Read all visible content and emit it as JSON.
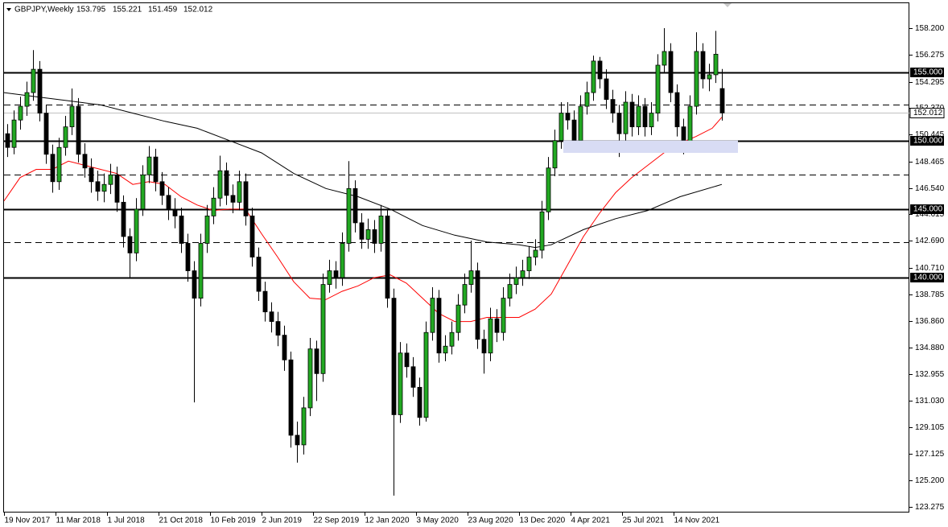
{
  "chart_data": {
    "type": "candlestick",
    "title": "GBPJPY,Weekly",
    "up_color": "#22a822",
    "down_color": "#000000",
    "x": [
      1,
      3,
      5,
      7,
      9,
      11,
      13,
      15,
      17,
      19,
      21,
      23,
      25,
      27,
      29,
      31,
      33,
      35,
      37,
      39,
      41,
      43,
      45,
      47,
      49,
      51,
      53,
      55,
      57,
      59,
      61,
      63,
      65,
      67,
      69,
      71,
      73,
      75,
      77,
      79,
      81,
      83,
      85,
      87,
      89,
      91,
      93,
      95,
      97,
      99,
      101,
      103,
      105,
      107,
      109,
      111,
      113,
      115,
      117,
      119,
      121,
      123,
      125,
      127,
      129,
      131,
      133,
      135,
      137,
      139,
      141,
      143,
      145,
      147,
      149,
      151,
      153,
      155,
      157,
      159,
      161,
      163,
      165,
      167,
      169,
      171,
      173,
      175,
      177,
      179,
      181,
      183,
      185,
      187,
      189,
      191,
      193,
      195,
      197,
      199,
      201,
      203,
      205,
      207,
      209,
      211,
      213,
      215,
      217,
      219,
      221,
      223
    ],
    "open": [
      150.5,
      149.5,
      151.5,
      152.5,
      153.5,
      155.2,
      152.0,
      149.0,
      147.0,
      149.5,
      151.0,
      152.5,
      149.0,
      148.0,
      147.0,
      146.3,
      146.8,
      147.5,
      145.5,
      143.0,
      141.8,
      145.0,
      147.5,
      148.8,
      147.0,
      146.0,
      145.0,
      144.5,
      142.5,
      140.5,
      138.5,
      142.5,
      144.5,
      145.8,
      147.8,
      146.0,
      145.5,
      147.0,
      144.5,
      141.5,
      139.0,
      137.5,
      136.8,
      135.8,
      134.0,
      128.5,
      127.8,
      130.5,
      134.8,
      133.0,
      139.5,
      140.5,
      140.0,
      142.5,
      146.5,
      144.0,
      142.8,
      143.5,
      142.5,
      144.5,
      138.5,
      130.0,
      134.5,
      133.5,
      132.0,
      129.8,
      136.0,
      138.5,
      134.5,
      135.0,
      136.0,
      138.0,
      139.5,
      140.5,
      135.5,
      134.5,
      137.0,
      136.0,
      138.5,
      139.5,
      140.0,
      140.5,
      141.5,
      142.0,
      144.8,
      148.0,
      150.0,
      152.0,
      151.5,
      150.0,
      152.5,
      153.5,
      155.8,
      154.5,
      153.0,
      152.0,
      150.5,
      152.8,
      151.0,
      152.5,
      151.0,
      152.0,
      155.5,
      156.5,
      153.5,
      151.0,
      149.8,
      152.5,
      156.5,
      154.5,
      154.8,
      153.795
    ],
    "high": [
      151.2,
      152.2,
      153.2,
      154.3,
      156.6,
      155.8,
      152.6,
      149.7,
      150.2,
      151.8,
      153.8,
      153.1,
      149.8,
      148.7,
      147.8,
      147.6,
      148.3,
      148.1,
      146.0,
      143.6,
      145.8,
      148.2,
      149.6,
      149.4,
      147.7,
      146.6,
      145.8,
      145.1,
      143.2,
      141.2,
      143.2,
      145.3,
      146.6,
      148.9,
      148.4,
      146.8,
      147.8,
      147.6,
      145.1,
      142.2,
      139.7,
      138.2,
      137.5,
      136.5,
      134.6,
      129.5,
      131.3,
      135.6,
      135.4,
      140.3,
      141.3,
      141.2,
      143.3,
      148.5,
      147.1,
      144.7,
      144.3,
      144.2,
      145.3,
      145.0,
      139.2,
      135.3,
      135.2,
      134.2,
      132.7,
      136.8,
      139.3,
      139.1,
      135.8,
      136.8,
      138.8,
      140.3,
      142.7,
      141.1,
      136.2,
      137.8,
      137.7,
      139.3,
      140.3,
      140.8,
      141.3,
      142.3,
      142.8,
      145.6,
      148.8,
      150.8,
      152.8,
      152.8,
      152.2,
      153.3,
      154.3,
      156.2,
      156.1,
      155.2,
      153.7,
      152.6,
      153.6,
      153.4,
      153.3,
      153.1,
      152.8,
      156.3,
      158.2,
      157.1,
      154.1,
      151.6,
      153.3,
      157.9,
      157.1,
      155.6,
      158.0,
      155.221
    ],
    "low": [
      148.8,
      149.0,
      150.8,
      151.8,
      152.9,
      151.4,
      148.3,
      146.2,
      146.4,
      148.9,
      150.4,
      148.4,
      147.3,
      146.2,
      145.6,
      145.5,
      146.1,
      144.8,
      142.2,
      140.0,
      141.2,
      144.5,
      146.9,
      146.3,
      145.3,
      144.2,
      143.6,
      141.8,
      139.7,
      130.9,
      137.9,
      141.8,
      143.9,
      145.2,
      145.3,
      144.7,
      144.9,
      143.8,
      140.8,
      138.3,
      136.8,
      136.0,
      135.0,
      133.2,
      127.6,
      126.5,
      127.1,
      129.9,
      131.0,
      132.4,
      138.9,
      139.2,
      139.4,
      141.9,
      143.3,
      142.1,
      142.1,
      141.8,
      141.9,
      137.8,
      124.1,
      129.4,
      132.7,
      131.3,
      129.2,
      129.5,
      135.4,
      133.8,
      133.9,
      134.4,
      135.4,
      137.4,
      138.9,
      134.8,
      133.0,
      133.9,
      135.3,
      135.4,
      137.9,
      138.8,
      139.4,
      139.9,
      140.9,
      141.4,
      144.2,
      147.4,
      149.4,
      150.8,
      149.3,
      149.4,
      151.9,
      152.9,
      153.8,
      152.3,
      151.3,
      148.8,
      149.9,
      150.3,
      150.4,
      150.3,
      150.4,
      151.4,
      154.9,
      152.8,
      150.3,
      149.0,
      149.2,
      151.9,
      153.8,
      153.6,
      154.2,
      151.459
    ],
    "close": [
      149.5,
      151.5,
      152.5,
      153.5,
      155.2,
      152.0,
      149.0,
      147.0,
      149.5,
      151.0,
      152.5,
      149.0,
      148.0,
      147.0,
      146.3,
      146.8,
      147.5,
      145.5,
      143.0,
      141.8,
      145.0,
      147.5,
      148.8,
      147.0,
      146.0,
      145.0,
      144.5,
      142.5,
      140.5,
      138.5,
      142.5,
      144.5,
      145.8,
      147.8,
      146.0,
      145.5,
      147.0,
      144.5,
      141.5,
      139.0,
      137.5,
      136.8,
      135.8,
      134.0,
      128.5,
      127.8,
      130.5,
      134.8,
      133.0,
      139.5,
      140.5,
      140.0,
      142.5,
      146.5,
      144.0,
      142.8,
      143.5,
      142.5,
      144.5,
      138.5,
      130.0,
      134.5,
      133.5,
      132.0,
      129.8,
      136.0,
      138.5,
      134.5,
      135.0,
      136.0,
      138.0,
      139.5,
      140.5,
      135.5,
      134.5,
      137.0,
      136.0,
      138.5,
      139.5,
      140.0,
      140.5,
      141.5,
      142.0,
      144.8,
      148.0,
      150.0,
      152.0,
      151.5,
      150.0,
      152.5,
      153.5,
      155.8,
      154.5,
      153.0,
      152.0,
      150.5,
      152.8,
      151.0,
      152.5,
      151.0,
      152.0,
      155.5,
      156.5,
      153.5,
      151.0,
      149.8,
      152.5,
      156.5,
      154.5,
      154.8,
      156.3,
      152.012
    ],
    "overlays": [
      {
        "color": "#ff0000",
        "x": [
          0,
          5,
          10,
          15,
          20,
          25,
          30,
          35,
          40,
          45,
          50,
          55,
          60,
          65,
          70,
          75,
          80,
          85,
          90,
          95,
          100,
          105,
          110,
          115,
          120,
          125,
          130,
          135,
          140,
          145,
          150,
          155,
          160,
          165,
          170,
          175,
          180,
          185,
          190,
          195,
          200,
          205,
          210,
          215,
          220,
          223
        ],
        "values": [
          145.6,
          147.3,
          147.9,
          147.9,
          148.5,
          148.2,
          147.9,
          147.6,
          146.8,
          147.0,
          146.8,
          145.9,
          145.3,
          144.9,
          145.0,
          145.0,
          143.2,
          141.5,
          139.7,
          138.5,
          138.4,
          139.0,
          139.4,
          140.0,
          140.2,
          139.6,
          138.5,
          137.4,
          136.8,
          136.8,
          137.1,
          137.1,
          137.1,
          137.7,
          138.8,
          140.9,
          143.0,
          144.7,
          146.2,
          147.3,
          148.2,
          149.1,
          149.8,
          150.3,
          150.9,
          151.7
        ]
      },
      {
        "color": "#000000",
        "x": [
          0,
          10,
          20,
          30,
          40,
          50,
          60,
          70,
          80,
          90,
          100,
          110,
          120,
          130,
          140,
          150,
          160,
          165,
          170,
          180,
          190,
          200,
          210,
          223
        ],
        "values": [
          153.5,
          153.2,
          152.9,
          152.6,
          152.0,
          151.4,
          150.9,
          150.0,
          149.1,
          147.6,
          146.5,
          145.9,
          145.0,
          143.8,
          143.1,
          142.6,
          142.4,
          142.2,
          142.4,
          143.5,
          144.3,
          144.9,
          145.9,
          146.8
        ]
      }
    ],
    "levels": [
      {
        "value": 155,
        "label": "155.000"
      },
      {
        "value": 150,
        "label": "150.000"
      },
      {
        "value": 145,
        "label": "145.000"
      },
      {
        "value": 140,
        "label": "140.000"
      }
    ],
    "dashed_levels": [
      152.6,
      147.5,
      142.6
    ],
    "zone": {
      "x": [
        173.75,
        228
      ],
      "y": [
        149.1,
        150.0
      ],
      "color": "#d8dcf4"
    },
    "xlim": [
      0,
      281.25
    ],
    "ylim": [
      122.864,
      159.961
    ],
    "xticks": [
      {
        "value": 0,
        "label": "19 Nov 2017"
      },
      {
        "value": 16,
        "label": "11 Mar 2018"
      },
      {
        "value": 32,
        "label": "1 Jul 2018"
      },
      {
        "value": 48,
        "label": "21 Oct 2018"
      },
      {
        "value": 64,
        "label": "10 Feb 2019"
      },
      {
        "value": 80,
        "label": "2 Jun 2019"
      },
      {
        "value": 96,
        "label": "22 Sep 2019"
      },
      {
        "value": 112,
        "label": "12 Jan 2020"
      },
      {
        "value": 128,
        "label": "3 May 2020"
      },
      {
        "value": 144,
        "label": "23 Aug 2020"
      },
      {
        "value": 160,
        "label": "13 Dec 2020"
      },
      {
        "value": 176,
        "label": "4 Apr 2021"
      },
      {
        "value": 192,
        "label": "25 Jul 2021"
      },
      {
        "value": 208,
        "label": "14 Nov 2021"
      }
    ],
    "yticks": [
      {
        "value": 158.2,
        "label": "158.200"
      },
      {
        "value": 156.275,
        "label": "156.275"
      },
      {
        "value": 154.295,
        "label": "154.295"
      },
      {
        "value": 152.37,
        "label": "152.370"
      },
      {
        "value": 150.445,
        "label": "150.445"
      },
      {
        "value": 148.465,
        "label": "148.465"
      },
      {
        "value": 146.54,
        "label": "146.540"
      },
      {
        "value": 144.615,
        "label": "144.615"
      },
      {
        "value": 142.69,
        "label": "142.690"
      },
      {
        "value": 140.71,
        "label": "140.710"
      },
      {
        "value": 138.785,
        "label": "138.785"
      },
      {
        "value": 136.86,
        "label": "136.860"
      },
      {
        "value": 134.88,
        "label": "134.880"
      },
      {
        "value": 132.955,
        "label": "132.955"
      },
      {
        "value": 131.03,
        "label": "131.030"
      },
      {
        "value": 129.105,
        "label": "129.105"
      },
      {
        "value": 127.125,
        "label": "127.125"
      },
      {
        "value": 125.2,
        "label": "125.200"
      },
      {
        "value": 123.275,
        "label": "123.275"
      }
    ]
  }
}
